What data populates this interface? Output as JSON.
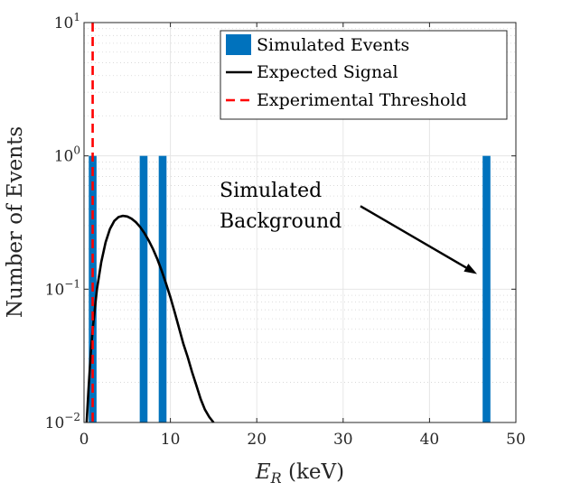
{
  "chart_data": {
    "type": "bar",
    "title": "",
    "xlabel": "E_R (keV)",
    "xlabel_main": "E",
    "xlabel_sub": "R",
    "xlabel_unit": "(keV)",
    "ylabel": "Number of Events",
    "xscale": "linear",
    "yscale": "log",
    "xlim": [
      0,
      50
    ],
    "ylim": [
      0.01,
      10
    ],
    "grid": true,
    "xticks": [
      0,
      10,
      20,
      30,
      40,
      50
    ],
    "xtick_labels": [
      "0",
      "10",
      "20",
      "30",
      "40",
      "50"
    ],
    "yticks": [
      {
        "value": 10,
        "base": "10",
        "exp": "1"
      },
      {
        "value": 1,
        "base": "10",
        "exp": "0"
      },
      {
        "value": 0.1,
        "base": "10",
        "exp": "−1"
      },
      {
        "value": 0.01,
        "base": "10",
        "exp": "−2"
      }
    ],
    "series": [
      {
        "name": "Simulated Events",
        "type": "bar",
        "color": "#0072bd",
        "bar_width_kev": 0.9,
        "points": [
          {
            "x": 1.0,
            "y": 1
          },
          {
            "x": 6.9,
            "y": 1
          },
          {
            "x": 9.1,
            "y": 1
          },
          {
            "x": 46.6,
            "y": 1
          }
        ]
      },
      {
        "name": "Expected Signal",
        "type": "line",
        "color": "#000000",
        "x": [
          0.3,
          0.5,
          0.8,
          1.0,
          1.5,
          2.0,
          2.5,
          3.0,
          3.5,
          4.0,
          4.5,
          5.0,
          5.5,
          6.0,
          6.5,
          7.0,
          7.5,
          8.0,
          8.5,
          9.0,
          9.5,
          10.0,
          10.5,
          11.0,
          11.5,
          12.0,
          12.5,
          13.0,
          13.5,
          14.0,
          14.5,
          15.0
        ],
        "values": [
          0.01,
          0.017,
          0.034,
          0.05,
          0.1,
          0.16,
          0.225,
          0.283,
          0.325,
          0.348,
          0.355,
          0.351,
          0.338,
          0.318,
          0.293,
          0.263,
          0.231,
          0.199,
          0.167,
          0.137,
          0.11,
          0.087,
          0.067,
          0.051,
          0.039,
          0.031,
          0.024,
          0.019,
          0.015,
          0.0125,
          0.011,
          0.0097
        ]
      },
      {
        "name": "Experimental Threshold",
        "type": "vline",
        "color": "#ff0000",
        "x": 1.0
      }
    ],
    "legend": {
      "position": "top-right",
      "entries": [
        "Simulated Events",
        "Expected Signal",
        "Experimental Threshold"
      ]
    },
    "annotations": [
      {
        "lines": [
          "Simulated",
          "Background"
        ],
        "arrow_from": {
          "x": 32,
          "y": 0.42
        },
        "arrow_to": {
          "x": 45.5,
          "y": 0.13
        }
      }
    ]
  }
}
